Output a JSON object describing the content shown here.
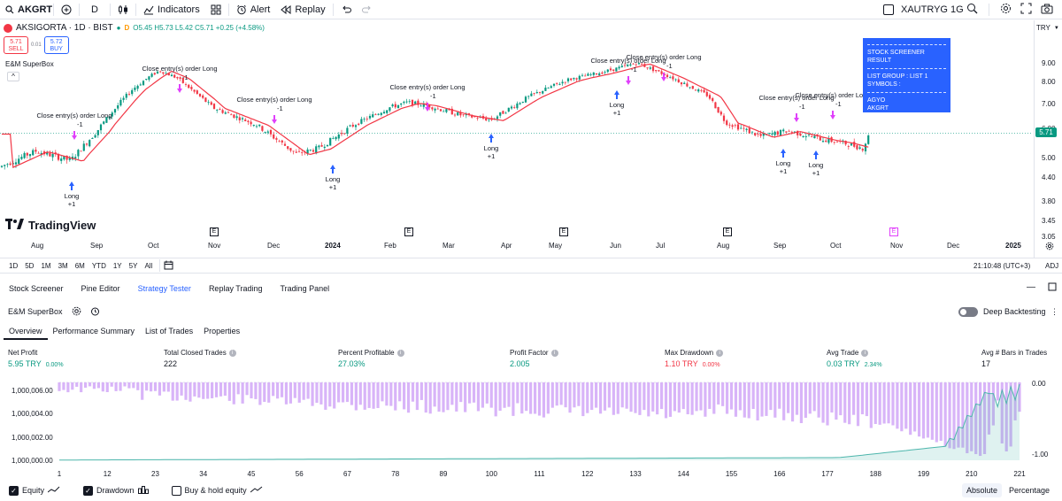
{
  "topbar": {
    "symbol": "AKGRT",
    "interval": "D",
    "indicators_label": "Indicators",
    "alert_label": "Alert",
    "replay_label": "Replay",
    "compare_symbol": "XAUTRYG 1G",
    "currency": "TRY"
  },
  "legend": {
    "title": "AKSIGORTA · 1D · BIST",
    "open": "O5.45",
    "high": "H5.73",
    "low": "L5.42",
    "close": "C5.71",
    "change": "+0.25 (+4.58%)",
    "sell_price": "5.71",
    "sell_label": "SELL",
    "spread": "0.01",
    "buy_price": "5.72",
    "buy_label": "BUY",
    "strategy_name": "E&M SuperBox",
    "collapse": "^"
  },
  "screener": {
    "title": "STOCK SCREENER RESULT",
    "group": "LIST GROUP : LIST 1",
    "symbols_label": "SYMBOLS :",
    "symbols": [
      "AGYO",
      "AKGRT"
    ]
  },
  "price_axis": {
    "labels": [
      "9.00",
      "8.00",
      "7.00",
      "6.00",
      "5.00",
      "4.40",
      "3.80",
      "3.45",
      "3.05"
    ],
    "last": "5.71"
  },
  "time_axis": [
    "Aug",
    "Sep",
    "Oct",
    "Nov",
    "Dec",
    "2024",
    "Feb",
    "Mar",
    "Apr",
    "May",
    "Jun",
    "Jul",
    "Aug",
    "Sep",
    "Oct",
    "Nov",
    "Dec",
    "2025"
  ],
  "earnings_marker": "E",
  "trade_labels": {
    "close": "Close entry(s) order Long",
    "minus": "-1",
    "long": "Long",
    "plus": "+1"
  },
  "brand": "TradingView",
  "range_bar": {
    "ranges": [
      "1D",
      "5D",
      "1M",
      "3M",
      "6M",
      "YTD",
      "1Y",
      "5Y",
      "All"
    ],
    "clock": "21:10:48 (UTC+3)",
    "adj": "ADJ"
  },
  "panel_tabs": [
    "Stock Screener",
    "Pine Editor",
    "Strategy Tester",
    "Replay Trading",
    "Trading Panel"
  ],
  "strategy": {
    "name": "E&M SuperBox",
    "deep_label": "Deep Backtesting"
  },
  "sub_tabs": [
    "Overview",
    "Performance Summary",
    "List of Trades",
    "Properties"
  ],
  "metrics": [
    {
      "label": "Net Profit",
      "value": "5.95 TRY",
      "pct": "0.00%",
      "color": "green"
    },
    {
      "label": "Total Closed Trades",
      "value": "222",
      "pct": "",
      "color": ""
    },
    {
      "label": "Percent Profitable",
      "value": "27.03%",
      "pct": "",
      "color": "green"
    },
    {
      "label": "Profit Factor",
      "value": "2.005",
      "pct": "",
      "color": "green"
    },
    {
      "label": "Max Drawdown",
      "value": "1.10 TRY",
      "pct": "0.00%",
      "color": "red"
    },
    {
      "label": "Avg Trade",
      "value": "0.03 TRY",
      "pct": "2.34%",
      "color": "green"
    },
    {
      "label": "Avg # Bars in Trades",
      "value": "17",
      "pct": "",
      "color": ""
    }
  ],
  "equity_axis": {
    "left": [
      "1,000,006.00",
      "1,000,004.00",
      "1,000,002.00",
      "1,000,000.00"
    ],
    "right": [
      "0.00",
      "-1.00"
    ],
    "x": [
      "1",
      "12",
      "23",
      "34",
      "45",
      "56",
      "67",
      "78",
      "89",
      "100",
      "111",
      "122",
      "133",
      "144",
      "155",
      "166",
      "177",
      "188",
      "199",
      "210",
      "221"
    ]
  },
  "bottom": {
    "equity": "Equity",
    "drawdown": "Drawdown",
    "buyhold": "Buy & hold equity",
    "absolute": "Absolute",
    "percentage": "Percentage"
  },
  "colors": {
    "up": "#089981",
    "down": "#f23645",
    "accent": "#2962ff",
    "ma": "#f23645",
    "long_arrow": "#2962ff",
    "exit_arrow": "#e040fb",
    "drawdown": "#d8b4f8",
    "equity": "#4db6ac"
  }
}
